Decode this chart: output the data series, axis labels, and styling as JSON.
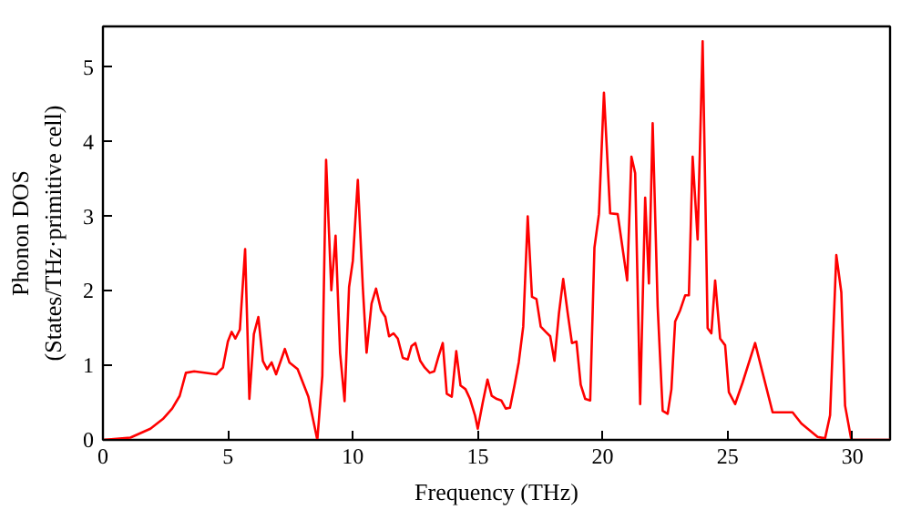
{
  "chart_data": {
    "type": "line",
    "xlabel": "Frequency (THz)",
    "ylabel": "Phonon DOS\n(States/THz·primitive cell)",
    "xlim": [
      0,
      31.5
    ],
    "ylim": [
      0,
      5.55
    ],
    "xticks": [
      0,
      5,
      10,
      15,
      20,
      25,
      30
    ],
    "yticks": [
      0,
      1,
      2,
      3,
      4,
      5
    ],
    "series": [
      {
        "color": "#ff0000",
        "x": [
          0,
          1.1,
          1.9,
          2.4,
          2.77,
          3.07,
          3.32,
          3.65,
          4.54,
          4.8,
          5.0,
          5.15,
          5.3,
          5.48,
          5.69,
          5.86,
          6.04,
          6.22,
          6.4,
          6.57,
          6.75,
          6.93,
          7.28,
          7.46,
          7.79,
          8.22,
          8.58,
          8.78,
          8.93,
          9.14,
          9.31,
          9.49,
          9.67,
          9.85,
          10.0,
          10.2,
          10.4,
          10.55,
          10.75,
          10.93,
          11.13,
          11.3,
          11.45,
          11.63,
          11.8,
          12.0,
          12.2,
          12.35,
          12.5,
          12.7,
          12.88,
          13.08,
          13.26,
          13.43,
          13.6,
          13.76,
          13.96,
          14.14,
          14.31,
          14.51,
          14.69,
          14.89,
          15.0,
          15.2,
          15.39,
          15.56,
          15.76,
          15.94,
          16.12,
          16.29,
          16.47,
          16.64,
          16.82,
          17.0,
          17.17,
          17.35,
          17.52,
          17.72,
          17.9,
          18.07,
          18.25,
          18.42,
          18.6,
          18.77,
          18.95,
          19.12,
          19.3,
          19.5,
          19.67,
          19.85,
          20.05,
          20.3,
          20.6,
          20.98,
          21.15,
          21.3,
          21.5,
          21.7,
          21.85,
          22.0,
          22.2,
          22.4,
          22.6,
          22.75,
          22.9,
          23.1,
          23.3,
          23.45,
          23.6,
          23.8,
          24.0,
          24.2,
          24.35,
          24.5,
          24.7,
          24.9,
          25.05,
          25.3,
          25.6,
          26.1,
          26.4,
          26.8,
          27.6,
          27.95,
          28.6,
          28.9,
          29.1,
          29.35,
          29.55,
          29.7,
          29.95,
          31.5
        ],
        "values": [
          0,
          0.03,
          0.15,
          0.28,
          0.42,
          0.59,
          0.9,
          0.92,
          0.88,
          0.97,
          1.32,
          1.45,
          1.36,
          1.48,
          2.56,
          0.55,
          1.42,
          1.65,
          1.06,
          0.95,
          1.04,
          0.88,
          1.22,
          1.04,
          0.95,
          0.58,
          0,
          0.86,
          3.76,
          2.01,
          2.74,
          1.17,
          0.52,
          2.05,
          2.4,
          3.49,
          2.05,
          1.17,
          1.83,
          2.03,
          1.74,
          1.65,
          1.39,
          1.43,
          1.36,
          1.1,
          1.08,
          1.26,
          1.3,
          1.06,
          0.97,
          0.9,
          0.92,
          1.12,
          1.3,
          0.62,
          0.58,
          1.19,
          0.73,
          0.68,
          0.55,
          0.33,
          0.15,
          0.5,
          0.81,
          0.59,
          0.55,
          0.53,
          0.42,
          0.43,
          0.73,
          1.04,
          1.52,
          3.0,
          1.92,
          1.89,
          1.52,
          1.45,
          1.39,
          1.06,
          1.7,
          2.16,
          1.7,
          1.3,
          1.32,
          0.74,
          0.55,
          0.53,
          2.58,
          3.03,
          4.66,
          3.04,
          3.03,
          2.14,
          3.8,
          3.58,
          0.48,
          3.25,
          2.1,
          4.25,
          1.79,
          0.39,
          0.35,
          0.68,
          1.59,
          1.74,
          1.94,
          1.94,
          3.8,
          2.69,
          5.35,
          1.5,
          1.43,
          2.14,
          1.36,
          1.27,
          0.64,
          0.48,
          0.77,
          1.3,
          0.9,
          0.37,
          0.37,
          0.22,
          0.04,
          0.02,
          0.33,
          2.48,
          1.98,
          0.46,
          0,
          0
        ]
      }
    ]
  }
}
